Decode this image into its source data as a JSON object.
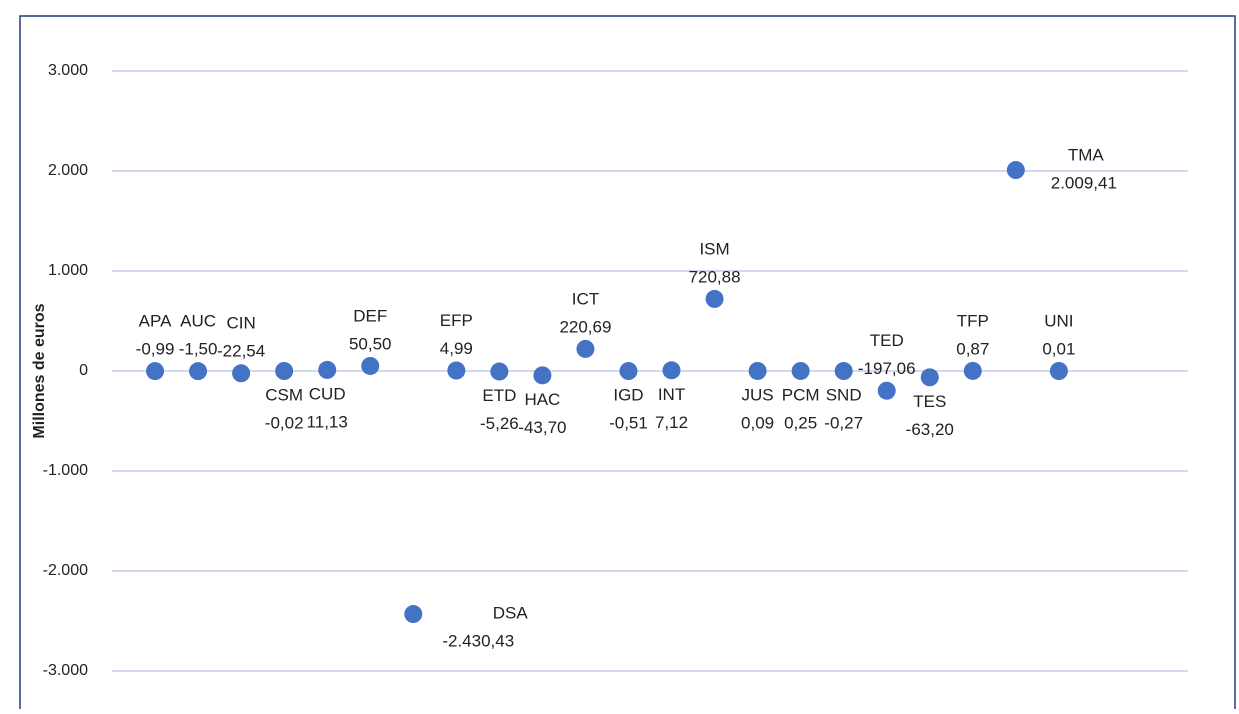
{
  "chart_data": {
    "type": "scatter",
    "y_label": "Millones de euros",
    "categories": [
      "APA",
      "AUC",
      "CIN",
      "CSM",
      "CUD",
      "DEF",
      "DSA",
      "EFP",
      "ETD",
      "HAC",
      "ICT",
      "IGD",
      "INT",
      "ISM",
      "JUS",
      "PCM",
      "SND",
      "TED",
      "TES",
      "TFP",
      "TMA",
      "UNI"
    ],
    "values": [
      -0.99,
      -1.5,
      -22.54,
      -0.02,
      11.13,
      50.5,
      -2430.43,
      4.99,
      -5.26,
      -43.7,
      220.69,
      -0.51,
      7.12,
      720.88,
      0.09,
      0.25,
      -0.27,
      -197.06,
      -63.2,
      0.87,
      2009.41,
      0.01
    ],
    "value_labels": [
      "-0,99",
      "-1,50",
      "-22,54",
      "-0,02",
      "11,13",
      "50,50",
      "-2.430,43",
      "4,99",
      "-5,26",
      "-43,70",
      "220,69",
      "-0,51",
      "7,12",
      "720,88",
      "0,09",
      "0,25",
      "-0,27",
      "-197,06",
      "-63,20",
      "0,87",
      "2.009,41",
      "0,01"
    ],
    "color": "#4472c4",
    "ylim": [
      -3300,
      3300
    ],
    "yticks": [
      {
        "value": -3000,
        "label": "-3.000"
      },
      {
        "value": -2000,
        "label": "-2.000"
      },
      {
        "value": -1000,
        "label": "-1.000"
      },
      0,
      {
        "value": 1000,
        "label": "1.000"
      },
      {
        "value": 2000,
        "label": "2.000"
      },
      {
        "value": 3000,
        "label": "3.000"
      }
    ],
    "grid": true
  }
}
